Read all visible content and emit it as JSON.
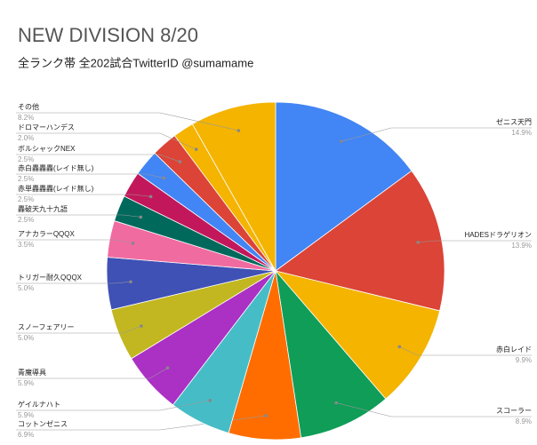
{
  "chart_data": {
    "type": "pie",
    "title": "NEW DIVISION 8/20",
    "subtitle": "全ランク帯 全202試合TwitterID @sumamame",
    "categories": [
      "ゼニス天門",
      "HADESドラゲリオン",
      "赤白レイド",
      "スコーラー",
      "コットンゼニス",
      "ゲイルナハト",
      "青魔導具",
      "スノーフェアリー",
      "トリガー耐久QQQX",
      "アナカラーQQQX",
      "轟破天九十九語",
      "赤単轟轟轟(レイド無し)",
      "赤白轟轟轟(レイド無し)",
      "ボルシャックNEX",
      "ドロマーハンデス",
      "その他"
    ],
    "values": [
      14.9,
      13.9,
      9.9,
      8.9,
      6.9,
      5.9,
      5.9,
      5.0,
      5.0,
      3.5,
      2.5,
      2.5,
      2.5,
      2.5,
      2.0,
      8.2
    ],
    "value_labels": [
      "14.9%",
      "13.9%",
      "9.9%",
      "8.9%",
      "6.9%",
      "5.9%",
      "5.9%",
      "5.0%",
      "5.0%",
      "3.5%",
      "2.5%",
      "2.5%",
      "2.5%",
      "2.5%",
      "2.0%",
      "8.2%"
    ],
    "colors": [
      "#4285f4",
      "#db4437",
      "#f4b400",
      "#0f9d58",
      "#ff6d00",
      "#46bdc6",
      "#ab30c4",
      "#c2b720",
      "#3f51b5",
      "#f06ba0",
      "#00695c",
      "#c2185b",
      "#4285f4",
      "#db4437",
      "#f4b400",
      "#f4b400"
    ]
  }
}
